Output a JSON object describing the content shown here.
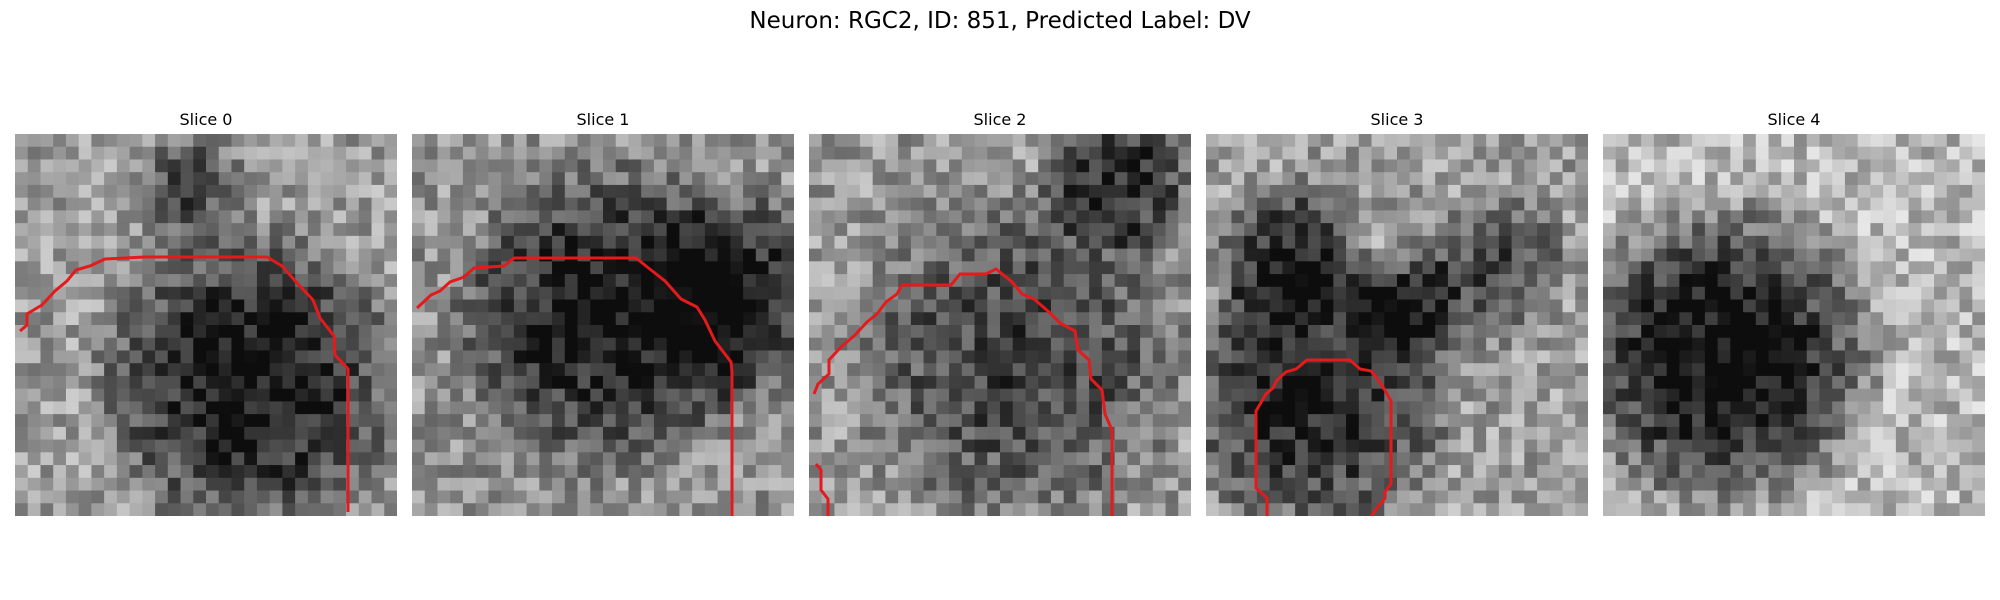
{
  "figure": {
    "title": "Neuron: RGC2, ID: 851, Predicted Label: DV"
  },
  "panels": [
    {
      "title": "Slice 0",
      "dark_region": "lower-right",
      "has_contour": true,
      "contour_color": "#e41a1c"
    },
    {
      "title": "Slice 1",
      "dark_region": "center-right",
      "has_contour": true,
      "contour_color": "#e41a1c"
    },
    {
      "title": "Slice 2",
      "dark_region": "center",
      "has_contour": true,
      "contour_color": "#e41a1c"
    },
    {
      "title": "Slice 3",
      "dark_region": "lower-left",
      "has_contour": true,
      "contour_color": "#e41a1c"
    },
    {
      "title": "Slice 4",
      "dark_region": "left",
      "has_contour": false,
      "contour_color": "#e41a1c"
    }
  ]
}
